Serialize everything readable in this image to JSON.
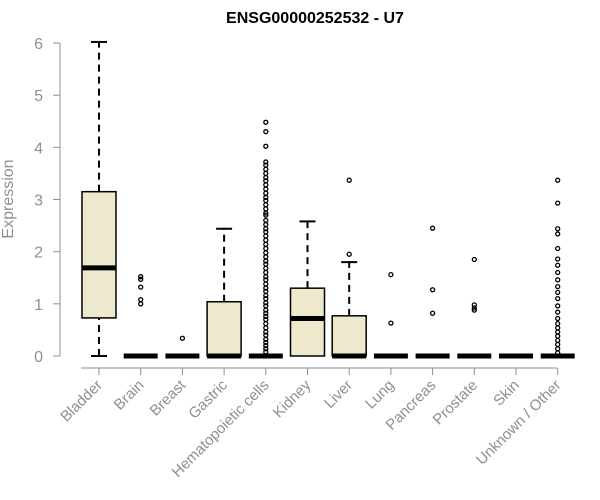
{
  "chart_data": {
    "type": "box",
    "title": "ENSG00000252532 - U7",
    "xlabel": "",
    "ylabel": "Expression",
    "ylim": [
      0,
      6
    ],
    "yticks": [
      0,
      1,
      2,
      3,
      4,
      5,
      6
    ],
    "categories": [
      "Bladder",
      "Brain",
      "Breast",
      "Gastric",
      "Hematopoietic cells",
      "Kidney",
      "Liver",
      "Lung",
      "Pancreas",
      "Prostate",
      "Skin",
      "Unknown / Other"
    ],
    "box_fill": "#eee8cd",
    "boxes": [
      {
        "category": "Bladder",
        "lower_whisker": 0,
        "q1": 0.73,
        "median": 1.69,
        "q3": 3.15,
        "upper_whisker": 6.02,
        "outliers": []
      },
      {
        "category": "Brain",
        "lower_whisker": 0,
        "q1": 0,
        "median": 0,
        "q3": 0,
        "upper_whisker": 0,
        "outliers": [
          1.52,
          1.47,
          1.32,
          1.08,
          1.0
        ]
      },
      {
        "category": "Breast",
        "lower_whisker": 0,
        "q1": 0,
        "median": 0,
        "q3": 0,
        "upper_whisker": 0,
        "outliers": [
          0.34
        ]
      },
      {
        "category": "Gastric",
        "lower_whisker": 0,
        "q1": 0,
        "median": 0,
        "q3": 1.04,
        "upper_whisker": 2.44,
        "outliers": []
      },
      {
        "category": "Hematopoietic cells",
        "lower_whisker": 0,
        "q1": 0,
        "median": 0,
        "q3": 0,
        "upper_whisker": 0,
        "outliers": [
          4.48,
          4.3,
          4.02,
          3.72,
          3.66,
          3.58,
          3.5,
          3.42,
          3.36,
          3.28,
          3.2,
          3.12,
          3.04,
          2.98,
          2.9,
          2.82,
          2.74,
          2.7,
          2.6,
          2.52,
          2.44,
          2.38,
          2.3,
          2.22,
          2.14,
          2.06,
          1.98,
          1.9,
          1.82,
          1.76,
          1.68,
          1.6,
          1.52,
          1.46,
          1.38,
          1.3,
          1.24,
          1.16,
          1.1,
          1.02,
          0.96,
          0.88,
          0.82,
          0.76,
          0.7,
          0.62,
          0.54,
          0.46,
          0.4,
          0.32,
          0.26,
          0.2,
          0.14,
          0.08
        ]
      },
      {
        "category": "Kidney",
        "lower_whisker": 0,
        "q1": 0,
        "median": 0.72,
        "q3": 1.3,
        "upper_whisker": 2.58,
        "outliers": []
      },
      {
        "category": "Liver",
        "lower_whisker": 0,
        "q1": 0,
        "median": 0,
        "q3": 0.77,
        "upper_whisker": 1.8,
        "outliers": [
          3.37,
          1.95
        ]
      },
      {
        "category": "Lung",
        "lower_whisker": 0,
        "q1": 0,
        "median": 0,
        "q3": 0,
        "upper_whisker": 0,
        "outliers": [
          1.56,
          0.63
        ]
      },
      {
        "category": "Pancreas",
        "lower_whisker": 0,
        "q1": 0,
        "median": 0,
        "q3": 0,
        "upper_whisker": 0,
        "outliers": [
          2.45,
          1.27,
          0.82
        ]
      },
      {
        "category": "Prostate",
        "lower_whisker": 0,
        "q1": 0,
        "median": 0,
        "q3": 0,
        "upper_whisker": 0,
        "outliers": [
          1.85,
          0.98,
          0.92,
          0.88
        ]
      },
      {
        "category": "Skin",
        "lower_whisker": 0,
        "q1": 0,
        "median": 0,
        "q3": 0,
        "upper_whisker": 0,
        "outliers": []
      },
      {
        "category": "Unknown / Other",
        "lower_whisker": 0,
        "q1": 0,
        "median": 0,
        "q3": 0,
        "upper_whisker": 0,
        "outliers": [
          3.37,
          2.93,
          2.44,
          2.34,
          2.06,
          1.86,
          1.74,
          1.6,
          1.46,
          1.33,
          1.22,
          1.1,
          0.96,
          0.84,
          0.72,
          0.62,
          0.54,
          0.46,
          0.38,
          0.3,
          0.22,
          0.14,
          0.06
        ]
      }
    ],
    "grid": false,
    "legend": "none"
  }
}
